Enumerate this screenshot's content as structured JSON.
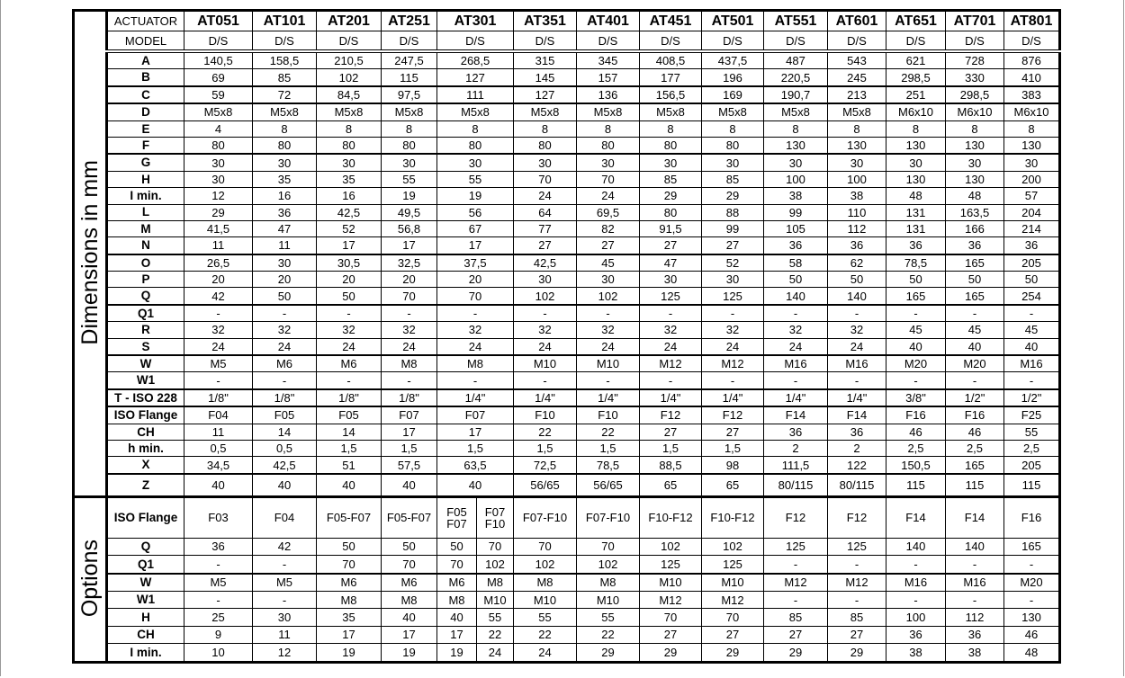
{
  "header": {
    "actuator_label": "ACTUATOR",
    "model_label": "MODEL",
    "models": [
      "AT051",
      "AT101",
      "AT201",
      "AT251",
      "AT301",
      "AT351",
      "AT401",
      "AT451",
      "AT501",
      "AT551",
      "AT601",
      "AT651",
      "AT701",
      "AT801"
    ],
    "model_types": [
      "D/S",
      "D/S",
      "D/S",
      "D/S",
      "D/S",
      "D/S",
      "D/S",
      "D/S",
      "D/S",
      "D/S",
      "D/S",
      "D/S",
      "D/S",
      "D/S"
    ]
  },
  "dimensions": {
    "section_label": "Dimensions in mm",
    "rows": [
      {
        "label": "A",
        "values": [
          "140,5",
          "158,5",
          "210,5",
          "247,5",
          "268,5",
          "315",
          "345",
          "408,5",
          "437,5",
          "487",
          "543",
          "621",
          "728",
          "876"
        ]
      },
      {
        "label": "B",
        "values": [
          "69",
          "85",
          "102",
          "115",
          "127",
          "145",
          "157",
          "177",
          "196",
          "220,5",
          "245",
          "298,5",
          "330",
          "410"
        ]
      },
      {
        "label": "C",
        "values": [
          "59",
          "72",
          "84,5",
          "97,5",
          "111",
          "127",
          "136",
          "156,5",
          "169",
          "190,7",
          "213",
          "251",
          "298,5",
          "383"
        ]
      },
      {
        "label": "D",
        "values": [
          "M5x8",
          "M5x8",
          "M5x8",
          "M5x8",
          "M5x8",
          "M5x8",
          "M5x8",
          "M5x8",
          "M5x8",
          "M5x8",
          "M5x8",
          "M6x10",
          "M6x10",
          "M6x10"
        ]
      },
      {
        "label": "E",
        "values": [
          "4",
          "8",
          "8",
          "8",
          "8",
          "8",
          "8",
          "8",
          "8",
          "8",
          "8",
          "8",
          "8",
          "8"
        ]
      },
      {
        "label": "F",
        "values": [
          "80",
          "80",
          "80",
          "80",
          "80",
          "80",
          "80",
          "80",
          "80",
          "130",
          "130",
          "130",
          "130",
          "130"
        ]
      },
      {
        "label": "G",
        "values": [
          "30",
          "30",
          "30",
          "30",
          "30",
          "30",
          "30",
          "30",
          "30",
          "30",
          "30",
          "30",
          "30",
          "30"
        ]
      },
      {
        "label": "H",
        "values": [
          "30",
          "35",
          "35",
          "55",
          "55",
          "70",
          "70",
          "85",
          "85",
          "100",
          "100",
          "130",
          "130",
          "200"
        ]
      },
      {
        "label": "I min.",
        "values": [
          "12",
          "16",
          "16",
          "19",
          "19",
          "24",
          "24",
          "29",
          "29",
          "38",
          "38",
          "48",
          "48",
          "57"
        ]
      },
      {
        "label": "L",
        "values": [
          "29",
          "36",
          "42,5",
          "49,5",
          "56",
          "64",
          "69,5",
          "80",
          "88",
          "99",
          "110",
          "131",
          "163,5",
          "204"
        ]
      },
      {
        "label": "M",
        "values": [
          "41,5",
          "47",
          "52",
          "56,8",
          "67",
          "77",
          "82",
          "91,5",
          "99",
          "105",
          "112",
          "131",
          "166",
          "214"
        ]
      },
      {
        "label": "N",
        "values": [
          "11",
          "11",
          "17",
          "17",
          "17",
          "27",
          "27",
          "27",
          "27",
          "36",
          "36",
          "36",
          "36",
          "36"
        ]
      },
      {
        "label": "O",
        "values": [
          "26,5",
          "30",
          "30,5",
          "32,5",
          "37,5",
          "42,5",
          "45",
          "47",
          "52",
          "58",
          "62",
          "78,5",
          "165",
          "205"
        ]
      },
      {
        "label": "P",
        "values": [
          "20",
          "20",
          "20",
          "20",
          "20",
          "30",
          "30",
          "30",
          "30",
          "50",
          "50",
          "50",
          "50",
          "50"
        ]
      },
      {
        "label": "Q",
        "values": [
          "42",
          "50",
          "50",
          "70",
          "70",
          "102",
          "102",
          "125",
          "125",
          "140",
          "140",
          "165",
          "165",
          "254"
        ]
      },
      {
        "label": "Q1",
        "values": [
          "-",
          "-",
          "-",
          "-",
          "-",
          "-",
          "-",
          "-",
          "-",
          "-",
          "-",
          "-",
          "-",
          "-"
        ]
      },
      {
        "label": "R",
        "values": [
          "32",
          "32",
          "32",
          "32",
          "32",
          "32",
          "32",
          "32",
          "32",
          "32",
          "32",
          "45",
          "45",
          "45"
        ]
      },
      {
        "label": "S",
        "values": [
          "24",
          "24",
          "24",
          "24",
          "24",
          "24",
          "24",
          "24",
          "24",
          "24",
          "24",
          "40",
          "40",
          "40"
        ]
      },
      {
        "label": "W",
        "values": [
          "M5",
          "M6",
          "M6",
          "M8",
          "M8",
          "M10",
          "M10",
          "M12",
          "M12",
          "M16",
          "M16",
          "M20",
          "M20",
          "M16"
        ]
      },
      {
        "label": "W1",
        "values": [
          "-",
          "-",
          "-",
          "-",
          "-",
          "-",
          "-",
          "-",
          "-",
          "-",
          "-",
          "-",
          "-",
          "-"
        ]
      },
      {
        "label": "T - ISO 228",
        "values": [
          "1/8\"",
          "1/8\"",
          "1/8\"",
          "1/8\"",
          "1/4\"",
          "1/4\"",
          "1/4\"",
          "1/4\"",
          "1/4\"",
          "1/4\"",
          "1/4\"",
          "3/8\"",
          "1/2\"",
          "1/2\""
        ]
      },
      {
        "label": "ISO Flange",
        "values": [
          "F04",
          "F05",
          "F05",
          "F07",
          "F07",
          "F10",
          "F10",
          "F12",
          "F12",
          "F14",
          "F14",
          "F16",
          "F16",
          "F25"
        ]
      },
      {
        "label": "CH",
        "values": [
          "11",
          "14",
          "14",
          "17",
          "17",
          "22",
          "22",
          "27",
          "27",
          "36",
          "36",
          "46",
          "46",
          "55"
        ]
      },
      {
        "label": "h min.",
        "values": [
          "0,5",
          "0,5",
          "1,5",
          "1,5",
          "1,5",
          "1,5",
          "1,5",
          "1,5",
          "1,5",
          "2",
          "2",
          "2,5",
          "2,5",
          "2,5"
        ]
      },
      {
        "label": "X",
        "values": [
          "34,5",
          "42,5",
          "51",
          "57,5",
          "63,5",
          "72,5",
          "78,5",
          "88,5",
          "98",
          "111,5",
          "122",
          "150,5",
          "165",
          "205"
        ]
      },
      {
        "label": "Z",
        "values": [
          "40",
          "40",
          "40",
          "40",
          "40",
          "56/65",
          "56/65",
          "65",
          "65",
          "80/115",
          "80/115",
          "115",
          "115",
          "115"
        ]
      }
    ]
  },
  "options": {
    "section_label": "Options",
    "rows": [
      {
        "label": "ISO Flange",
        "values": [
          "F03",
          "F04",
          "F05-F07",
          "F05-F07",
          [
            "F05\nF07",
            "F07\nF10"
          ],
          "F07-F10",
          "F07-F10",
          "F10-F12",
          "F10-F12",
          "F12",
          "F12",
          "F14",
          "F14",
          "F16"
        ]
      },
      {
        "label": "Q",
        "values": [
          "36",
          "42",
          "50",
          "50",
          [
            "50",
            "70"
          ],
          "70",
          "70",
          "102",
          "102",
          "125",
          "125",
          "140",
          "140",
          "165"
        ]
      },
      {
        "label": "Q1",
        "values": [
          "-",
          "-",
          "70",
          "70",
          [
            "70",
            "102"
          ],
          "102",
          "102",
          "125",
          "125",
          "-",
          "-",
          "-",
          "-",
          "-"
        ]
      },
      {
        "label": "W",
        "values": [
          "M5",
          "M5",
          "M6",
          "M6",
          [
            "M6",
            "M8"
          ],
          "M8",
          "M8",
          "M10",
          "M10",
          "M12",
          "M12",
          "M16",
          "M16",
          "M20"
        ]
      },
      {
        "label": "W1",
        "values": [
          "-",
          "-",
          "M8",
          "M8",
          [
            "M8",
            "M10"
          ],
          "M10",
          "M10",
          "M12",
          "M12",
          "-",
          "-",
          "-",
          "-",
          "-"
        ]
      },
      {
        "label": "H",
        "values": [
          "25",
          "30",
          "35",
          "40",
          [
            "40",
            "55"
          ],
          "55",
          "55",
          "70",
          "70",
          "85",
          "85",
          "100",
          "112",
          "130"
        ]
      },
      {
        "label": "CH",
        "values": [
          "9",
          "11",
          "17",
          "17",
          [
            "17",
            "22"
          ],
          "22",
          "22",
          "27",
          "27",
          "27",
          "27",
          "36",
          "36",
          "46"
        ]
      },
      {
        "label": "I min.",
        "values": [
          "10",
          "12",
          "19",
          "19",
          [
            "19",
            "24"
          ],
          "24",
          "29",
          "29",
          "29",
          "29",
          "29",
          "38",
          "38",
          "48"
        ]
      }
    ]
  }
}
